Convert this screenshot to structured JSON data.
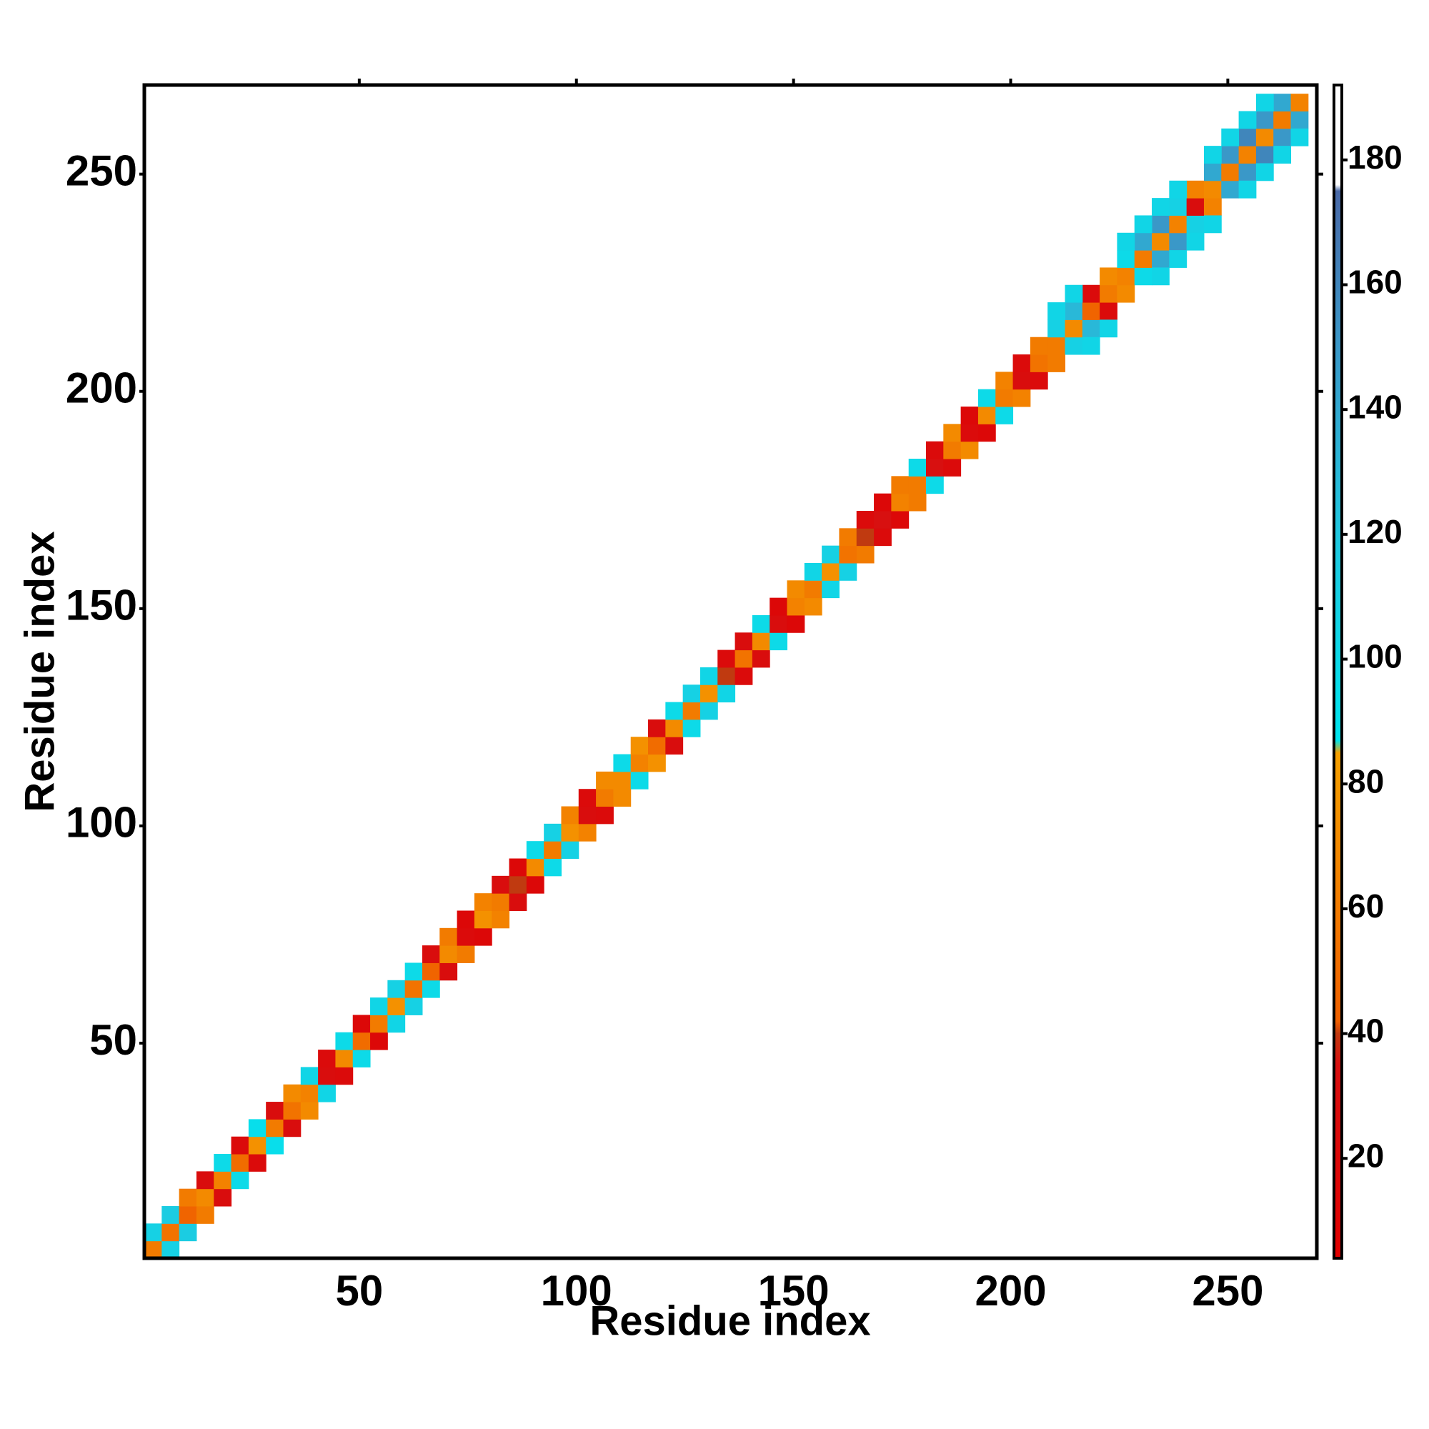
{
  "chart_data": {
    "type": "heatmap",
    "xlabel": "Residue index",
    "ylabel": "Residue index",
    "xlim": [
      0.5,
      270.5
    ],
    "ylim": [
      0.5,
      270.5
    ],
    "xticks": [
      50,
      100,
      150,
      200,
      250
    ],
    "yticks": [
      50,
      100,
      150,
      200,
      250
    ],
    "cell_size": 4,
    "colorbar": {
      "lim": [
        4,
        192
      ],
      "ticks": [
        20,
        40,
        60,
        80,
        100,
        120,
        140,
        160,
        180
      ],
      "colors": [
        [
          4,
          "#e00000"
        ],
        [
          35,
          "#d81010"
        ],
        [
          40,
          "#c03a10"
        ],
        [
          42,
          "#f06000"
        ],
        [
          85,
          "#f5a000"
        ],
        [
          87,
          "#00e5ee"
        ],
        [
          120,
          "#20c8e0"
        ],
        [
          150,
          "#3a98c8"
        ],
        [
          175,
          "#4a6aa8"
        ],
        [
          176,
          "#ffffff"
        ],
        [
          192,
          "#ffffff"
        ]
      ]
    },
    "cells": [
      [
        1,
        1,
        60
      ],
      [
        1,
        5,
        110
      ],
      [
        5,
        1,
        110
      ],
      [
        5,
        5,
        55
      ],
      [
        5,
        9,
        115
      ],
      [
        9,
        5,
        115
      ],
      [
        9,
        9,
        45
      ],
      [
        9,
        13,
        60
      ],
      [
        13,
        9,
        60
      ],
      [
        13,
        13,
        70
      ],
      [
        13,
        17,
        30
      ],
      [
        17,
        13,
        30
      ],
      [
        17,
        17,
        65
      ],
      [
        17,
        21,
        100
      ],
      [
        21,
        17,
        100
      ],
      [
        21,
        21,
        50
      ],
      [
        21,
        25,
        25
      ],
      [
        25,
        21,
        25
      ],
      [
        25,
        25,
        75
      ],
      [
        25,
        29,
        95
      ],
      [
        29,
        25,
        95
      ],
      [
        29,
        29,
        60
      ],
      [
        29,
        33,
        30
      ],
      [
        33,
        29,
        30
      ],
      [
        33,
        33,
        55
      ],
      [
        33,
        37,
        70
      ],
      [
        37,
        33,
        70
      ],
      [
        37,
        37,
        65
      ],
      [
        37,
        41,
        105
      ],
      [
        41,
        37,
        105
      ],
      [
        41,
        41,
        30
      ],
      [
        41,
        45,
        25
      ],
      [
        45,
        41,
        25
      ],
      [
        45,
        45,
        70
      ],
      [
        45,
        49,
        100
      ],
      [
        49,
        45,
        100
      ],
      [
        49,
        49,
        50
      ],
      [
        49,
        53,
        20
      ],
      [
        53,
        49,
        20
      ],
      [
        53,
        53,
        60
      ],
      [
        53,
        57,
        105
      ],
      [
        57,
        53,
        105
      ],
      [
        57,
        57,
        75
      ],
      [
        57,
        61,
        110
      ],
      [
        61,
        57,
        110
      ],
      [
        61,
        61,
        55
      ],
      [
        61,
        65,
        100
      ],
      [
        65,
        61,
        100
      ],
      [
        65,
        65,
        45
      ],
      [
        65,
        69,
        30
      ],
      [
        69,
        65,
        30
      ],
      [
        69,
        69,
        70
      ],
      [
        69,
        73,
        60
      ],
      [
        73,
        69,
        60
      ],
      [
        73,
        73,
        25
      ],
      [
        73,
        77,
        20
      ],
      [
        77,
        73,
        20
      ],
      [
        77,
        77,
        75
      ],
      [
        77,
        81,
        65
      ],
      [
        81,
        77,
        65
      ],
      [
        81,
        81,
        60
      ],
      [
        81,
        85,
        30
      ],
      [
        85,
        81,
        30
      ],
      [
        85,
        85,
        40
      ],
      [
        85,
        89,
        20
      ],
      [
        89,
        85,
        20
      ],
      [
        89,
        89,
        70
      ],
      [
        89,
        93,
        100
      ],
      [
        93,
        89,
        100
      ],
      [
        93,
        93,
        60
      ],
      [
        93,
        97,
        110
      ],
      [
        97,
        93,
        110
      ],
      [
        97,
        97,
        75
      ],
      [
        97,
        101,
        65
      ],
      [
        101,
        97,
        65
      ],
      [
        101,
        101,
        30
      ],
      [
        101,
        105,
        25
      ],
      [
        105,
        101,
        25
      ],
      [
        105,
        105,
        60
      ],
      [
        105,
        109,
        70
      ],
      [
        109,
        105,
        70
      ],
      [
        109,
        109,
        70
      ],
      [
        109,
        113,
        100
      ],
      [
        113,
        109,
        100
      ],
      [
        113,
        113,
        65
      ],
      [
        113,
        117,
        75
      ],
      [
        117,
        113,
        75
      ],
      [
        117,
        117,
        50
      ],
      [
        117,
        121,
        30
      ],
      [
        121,
        117,
        30
      ],
      [
        121,
        121,
        70
      ],
      [
        121,
        125,
        100
      ],
      [
        125,
        121,
        100
      ],
      [
        125,
        125,
        60
      ],
      [
        125,
        129,
        110
      ],
      [
        129,
        125,
        110
      ],
      [
        129,
        129,
        75
      ],
      [
        129,
        133,
        105
      ],
      [
        133,
        129,
        105
      ],
      [
        133,
        133,
        40
      ],
      [
        133,
        137,
        25
      ],
      [
        137,
        133,
        25
      ],
      [
        137,
        137,
        55
      ],
      [
        137,
        141,
        30
      ],
      [
        141,
        137,
        30
      ],
      [
        141,
        141,
        70
      ],
      [
        141,
        145,
        100
      ],
      [
        145,
        141,
        100
      ],
      [
        145,
        145,
        30
      ],
      [
        145,
        149,
        20
      ],
      [
        149,
        145,
        20
      ],
      [
        149,
        149,
        65
      ],
      [
        149,
        153,
        70
      ],
      [
        153,
        149,
        70
      ],
      [
        153,
        153,
        60
      ],
      [
        153,
        157,
        105
      ],
      [
        157,
        153,
        105
      ],
      [
        157,
        157,
        75
      ],
      [
        157,
        161,
        110
      ],
      [
        161,
        157,
        110
      ],
      [
        161,
        161,
        55
      ],
      [
        161,
        165,
        60
      ],
      [
        165,
        161,
        60
      ],
      [
        165,
        165,
        40
      ],
      [
        165,
        169,
        25
      ],
      [
        169,
        165,
        25
      ],
      [
        169,
        169,
        35
      ],
      [
        169,
        173,
        20
      ],
      [
        173,
        169,
        20
      ],
      [
        173,
        173,
        65
      ],
      [
        173,
        177,
        60
      ],
      [
        177,
        173,
        60
      ],
      [
        177,
        177,
        60
      ],
      [
        177,
        181,
        100
      ],
      [
        181,
        177,
        100
      ],
      [
        181,
        181,
        35
      ],
      [
        181,
        185,
        25
      ],
      [
        185,
        181,
        25
      ],
      [
        185,
        185,
        60
      ],
      [
        185,
        189,
        70
      ],
      [
        189,
        185,
        70
      ],
      [
        189,
        189,
        25
      ],
      [
        189,
        193,
        20
      ],
      [
        193,
        189,
        20
      ],
      [
        193,
        193,
        70
      ],
      [
        193,
        197,
        100
      ],
      [
        197,
        193,
        100
      ],
      [
        197,
        197,
        60
      ],
      [
        197,
        201,
        65
      ],
      [
        201,
        197,
        65
      ],
      [
        201,
        201,
        30
      ],
      [
        201,
        205,
        25
      ],
      [
        205,
        201,
        25
      ],
      [
        205,
        205,
        55
      ],
      [
        205,
        209,
        60
      ],
      [
        209,
        205,
        60
      ],
      [
        209,
        209,
        60
      ],
      [
        209,
        213,
        110
      ],
      [
        213,
        209,
        110
      ],
      [
        213,
        213,
        70
      ],
      [
        213,
        217,
        130
      ],
      [
        217,
        213,
        130
      ],
      [
        217,
        217,
        45
      ],
      [
        217,
        221,
        25
      ],
      [
        221,
        217,
        25
      ],
      [
        221,
        221,
        60
      ],
      [
        221,
        225,
        70
      ],
      [
        225,
        221,
        70
      ],
      [
        225,
        225,
        65
      ],
      [
        225,
        229,
        100
      ],
      [
        229,
        225,
        100
      ],
      [
        229,
        229,
        60
      ],
      [
        229,
        233,
        140
      ],
      [
        233,
        229,
        140
      ],
      [
        233,
        233,
        70
      ],
      [
        233,
        237,
        150
      ],
      [
        237,
        233,
        150
      ],
      [
        237,
        237,
        65
      ],
      [
        237,
        241,
        110
      ],
      [
        241,
        237,
        110
      ],
      [
        241,
        241,
        30
      ],
      [
        241,
        245,
        65
      ],
      [
        245,
        241,
        65
      ],
      [
        245,
        245,
        70
      ],
      [
        245,
        249,
        140
      ],
      [
        249,
        245,
        140
      ],
      [
        249,
        249,
        60
      ],
      [
        249,
        253,
        150
      ],
      [
        253,
        249,
        150
      ],
      [
        253,
        253,
        65
      ],
      [
        253,
        257,
        160
      ],
      [
        257,
        253,
        160
      ],
      [
        257,
        257,
        70
      ],
      [
        257,
        261,
        150
      ],
      [
        261,
        257,
        150
      ],
      [
        261,
        261,
        60
      ],
      [
        261,
        265,
        140
      ],
      [
        265,
        261,
        140
      ],
      [
        265,
        265,
        65
      ],
      [
        209,
        217,
        105
      ],
      [
        217,
        209,
        105
      ],
      [
        213,
        221,
        105
      ],
      [
        221,
        213,
        105
      ],
      [
        225,
        233,
        105
      ],
      [
        233,
        225,
        105
      ],
      [
        229,
        237,
        105
      ],
      [
        237,
        229,
        105
      ],
      [
        233,
        241,
        105
      ],
      [
        241,
        233,
        105
      ],
      [
        237,
        245,
        105
      ],
      [
        245,
        237,
        105
      ],
      [
        245,
        253,
        105
      ],
      [
        253,
        245,
        105
      ],
      [
        249,
        257,
        105
      ],
      [
        257,
        249,
        105
      ],
      [
        253,
        261,
        105
      ],
      [
        261,
        253,
        105
      ],
      [
        257,
        265,
        105
      ],
      [
        265,
        257,
        105
      ]
    ]
  }
}
